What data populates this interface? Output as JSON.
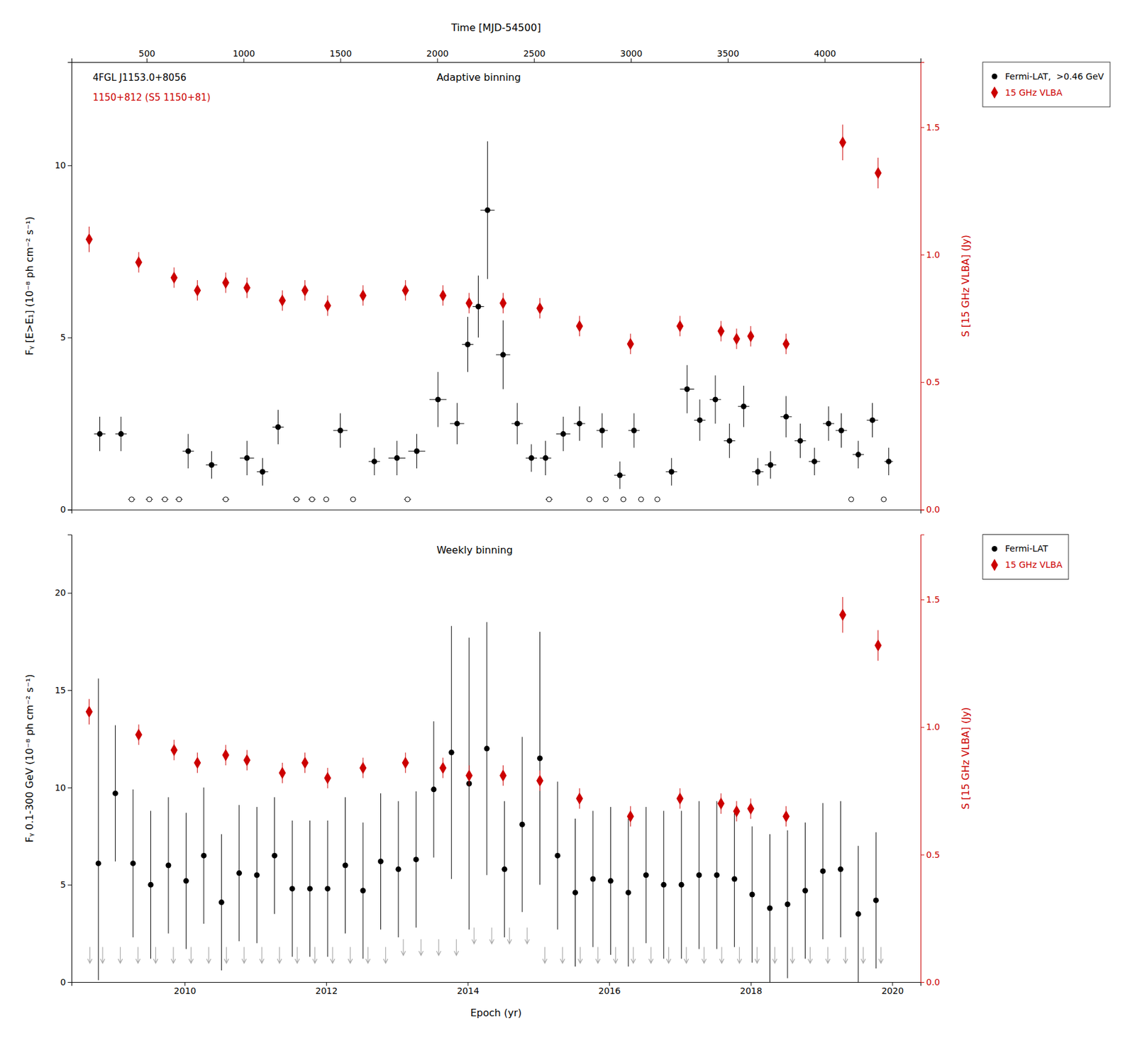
{
  "chart_data": [
    {
      "type": "scatter",
      "title": "Adaptive binning",
      "x2_label": "Time [MJD-54500]",
      "y_label": "Fᵧ [E>E₁] (10⁻⁸ ph cm⁻² s⁻¹)",
      "y2_label": "S [15 GHz VLBA] (Jy)",
      "xlim": [
        2008.4,
        2020.4
      ],
      "x2lim": [
        112.1,
        4495.1
      ],
      "x2ticks": [
        500,
        1000,
        1500,
        2000,
        2500,
        3000,
        3500,
        4000
      ],
      "ylim": [
        0,
        13.0
      ],
      "yticks": [
        0,
        5,
        10
      ],
      "y2lim": [
        0,
        1.755
      ],
      "y2ticks": [
        {
          "value": 0,
          "label": "0.0"
        },
        0.5,
        {
          "value": 1.0,
          "label": "1.0"
        },
        1.5
      ],
      "grid": false,
      "legend": "upper right",
      "annotations": [
        {
          "text": "4FGL J1153.0+8056",
          "color": "#000000"
        },
        {
          "text": "1150+812 (S5 1150+81)",
          "color": "#cc0000"
        }
      ],
      "series": [
        {
          "name": "Fermi-LAT,  >0.46 GeV",
          "type": "scatter",
          "marker": "circle",
          "color": "#000000",
          "x": [
            2008.8,
            2009.1,
            2010.05,
            2010.38,
            2010.88,
            2011.1,
            2011.32,
            2012.2,
            2012.68,
            2013.0,
            2013.28,
            2013.58,
            2013.85,
            2014.0,
            2014.15,
            2014.28,
            2014.5,
            2014.7,
            2014.9,
            2015.1,
            2015.35,
            2015.58,
            2015.9,
            2016.15,
            2016.35,
            2016.88,
            2017.1,
            2017.28,
            2017.5,
            2017.7,
            2017.9,
            2018.1,
            2018.28,
            2018.5,
            2018.7,
            2018.9,
            2019.1,
            2019.28,
            2019.52,
            2019.72,
            2019.95
          ],
          "values": [
            2.2,
            2.2,
            1.7,
            1.3,
            1.5,
            1.1,
            2.4,
            2.3,
            1.4,
            1.5,
            1.7,
            3.2,
            2.5,
            4.8,
            5.9,
            8.7,
            4.5,
            2.5,
            1.5,
            1.5,
            2.2,
            2.5,
            2.3,
            1.0,
            2.3,
            1.1,
            3.5,
            2.6,
            3.2,
            2.0,
            3.0,
            1.1,
            1.3,
            2.7,
            2.0,
            1.4,
            2.5,
            2.3,
            1.6,
            2.6,
            1.4
          ],
          "y_err": [
            0.5,
            0.5,
            0.5,
            0.4,
            0.5,
            0.4,
            0.5,
            0.5,
            0.4,
            0.5,
            0.5,
            0.8,
            0.6,
            0.8,
            0.9,
            2.0,
            1.0,
            0.6,
            0.4,
            0.5,
            0.5,
            0.5,
            0.5,
            0.4,
            0.5,
            0.4,
            0.7,
            0.6,
            0.7,
            0.5,
            0.6,
            0.4,
            0.4,
            0.6,
            0.5,
            0.4,
            0.5,
            0.5,
            0.4,
            0.5,
            0.4
          ],
          "x_err": [
            0.08,
            0.08,
            0.08,
            0.08,
            0.1,
            0.08,
            0.08,
            0.1,
            0.08,
            0.12,
            0.12,
            0.12,
            0.1,
            0.08,
            0.08,
            0.1,
            0.1,
            0.08,
            0.08,
            0.08,
            0.1,
            0.08,
            0.08,
            0.08,
            0.08,
            0.08,
            0.1,
            0.08,
            0.08,
            0.08,
            0.08,
            0.08,
            0.08,
            0.08,
            0.08,
            0.08,
            0.08,
            0.08,
            0.08,
            0.08,
            0.06
          ]
        },
        {
          "type": "scatter",
          "marker": "circle-open",
          "color": "#000000",
          "x": [
            2009.25,
            2009.5,
            2009.72,
            2009.92,
            2010.58,
            2011.58,
            2011.8,
            2012.0,
            2012.38,
            2013.15,
            2015.15,
            2015.72,
            2015.95,
            2016.2,
            2016.45,
            2016.68,
            2019.42,
            2019.88
          ],
          "values": [
            0.3,
            0.3,
            0.3,
            0.3,
            0.3,
            0.3,
            0.3,
            0.3,
            0.3,
            0.3,
            0.3,
            0.3,
            0.3,
            0.3,
            0.3,
            0.3,
            0.3,
            0.3
          ],
          "x_err": [
            0.05,
            0.05,
            0.05,
            0.05,
            0.05,
            0.05,
            0.05,
            0.04,
            0.04,
            0.05,
            0.05,
            0.04,
            0.04,
            0.04,
            0.04,
            0.04,
            0.04,
            0.04
          ]
        },
        {
          "name": "15 GHz VLBA",
          "type": "scatter",
          "marker": "diamond",
          "color": "#cc0000",
          "axis": "y2",
          "x": [
            2008.65,
            2009.35,
            2009.85,
            2010.18,
            2010.58,
            2010.88,
            2011.38,
            2011.7,
            2012.02,
            2012.52,
            2013.12,
            2013.65,
            2014.02,
            2014.5,
            2015.02,
            2015.58,
            2016.3,
            2017.0,
            2017.58,
            2017.8,
            2018.0,
            2018.5,
            2019.3,
            2019.8
          ],
          "values": [
            1.06,
            0.97,
            0.91,
            0.86,
            0.89,
            0.87,
            0.82,
            0.86,
            0.8,
            0.84,
            0.86,
            0.84,
            0.81,
            0.81,
            0.79,
            0.72,
            0.65,
            0.72,
            0.7,
            0.67,
            0.68,
            0.65,
            1.44,
            1.32
          ],
          "y_err": [
            0.05,
            0.04,
            0.04,
            0.04,
            0.04,
            0.04,
            0.04,
            0.04,
            0.04,
            0.04,
            0.04,
            0.04,
            0.04,
            0.04,
            0.04,
            0.04,
            0.04,
            0.04,
            0.04,
            0.04,
            0.04,
            0.04,
            0.07,
            0.06
          ]
        }
      ]
    },
    {
      "type": "scatter",
      "title": "Weekly binning",
      "x_label": "Epoch (yr)",
      "y_label": "Fᵧ 0.1-300 GeV (10⁻⁸ ph cm⁻² s⁻¹)",
      "y2_label": "S [15 GHz VLBA] (Jy)",
      "xlim": [
        2008.4,
        2020.4
      ],
      "xticks": [
        2010,
        2012,
        2014,
        2016,
        2018,
        2020
      ],
      "ylim": [
        0,
        23.0
      ],
      "yticks": [
        0,
        5,
        10,
        15,
        20
      ],
      "y2lim": [
        0,
        1.755
      ],
      "y2ticks": [
        {
          "value": 0,
          "label": "0.0"
        },
        0.5,
        {
          "value": 1.0,
          "label": "1.0"
        },
        1.5
      ],
      "grid": false,
      "legend": "upper right",
      "series": [
        {
          "name": "Fermi-LAT",
          "type": "scatter",
          "marker": "circle",
          "color": "#000000",
          "x": [
            2008.78,
            2009.02,
            2009.27,
            2009.52,
            2009.77,
            2010.02,
            2010.27,
            2010.52,
            2010.77,
            2011.02,
            2011.27,
            2011.52,
            2011.77,
            2012.02,
            2012.27,
            2012.52,
            2012.77,
            2013.02,
            2013.27,
            2013.52,
            2013.77,
            2014.02,
            2014.27,
            2014.52,
            2014.77,
            2015.02,
            2015.27,
            2015.52,
            2015.77,
            2016.02,
            2016.27,
            2016.52,
            2016.77,
            2017.02,
            2017.27,
            2017.52,
            2017.77,
            2018.02,
            2018.27,
            2018.52,
            2018.77,
            2019.02,
            2019.27,
            2019.52,
            2019.77
          ],
          "values": [
            6.1,
            9.7,
            6.1,
            5.0,
            6.0,
            5.2,
            6.5,
            4.1,
            5.6,
            5.5,
            6.5,
            4.8,
            4.8,
            4.8,
            6.0,
            4.7,
            6.2,
            5.8,
            6.3,
            9.9,
            11.8,
            10.2,
            12.0,
            5.8,
            8.1,
            11.5,
            6.5,
            4.6,
            5.3,
            5.2,
            4.6,
            5.5,
            5.0,
            5.0,
            5.5,
            5.5,
            5.3,
            4.5,
            3.8,
            4.0,
            4.7,
            5.7,
            5.8,
            3.5,
            4.2
          ],
          "y_err_minus": [
            6.0,
            3.5,
            3.8,
            3.8,
            3.5,
            3.5,
            3.5,
            3.5,
            3.5,
            3.5,
            3.0,
            3.5,
            3.5,
            3.5,
            3.5,
            3.5,
            3.5,
            3.5,
            3.5,
            3.5,
            6.5,
            7.5,
            6.5,
            3.5,
            4.5,
            6.5,
            3.8,
            3.8,
            3.5,
            3.8,
            3.8,
            3.5,
            3.8,
            3.8,
            3.8,
            3.8,
            3.5,
            3.5,
            3.8,
            3.8,
            3.5,
            3.5,
            3.5,
            3.5,
            3.5
          ],
          "y_err_plus": [
            9.5,
            3.5,
            3.8,
            3.8,
            3.5,
            3.5,
            3.5,
            3.5,
            3.5,
            3.5,
            3.0,
            3.5,
            3.5,
            3.5,
            3.5,
            3.5,
            3.5,
            3.5,
            3.5,
            3.5,
            6.5,
            7.5,
            6.5,
            3.5,
            4.5,
            6.5,
            3.8,
            3.8,
            3.5,
            3.8,
            3.8,
            3.5,
            3.8,
            3.8,
            3.8,
            3.8,
            3.5,
            3.5,
            3.8,
            3.8,
            3.5,
            3.5,
            3.5,
            3.5,
            3.5
          ]
        },
        {
          "type": "scatter",
          "marker": "arrow-down",
          "color": "#aaaaaa",
          "x": [
            2008.66,
            2008.84,
            2009.09,
            2009.34,
            2009.59,
            2009.84,
            2010.09,
            2010.34,
            2010.59,
            2010.84,
            2011.09,
            2011.34,
            2011.59,
            2011.84,
            2012.09,
            2012.34,
            2012.59,
            2012.84,
            2013.09,
            2013.34,
            2013.59,
            2013.84,
            2014.09,
            2014.34,
            2014.59,
            2014.84,
            2015.09,
            2015.34,
            2015.59,
            2015.84,
            2016.09,
            2016.34,
            2016.59,
            2016.84,
            2017.09,
            2017.34,
            2017.59,
            2017.84,
            2018.09,
            2018.34,
            2018.59,
            2018.84,
            2019.09,
            2019.34,
            2019.59,
            2019.84
          ],
          "values": [
            1.8,
            1.8,
            1.8,
            1.8,
            1.8,
            1.8,
            1.8,
            1.8,
            1.8,
            1.8,
            1.8,
            1.8,
            1.8,
            1.8,
            1.8,
            1.8,
            1.8,
            1.8,
            2.2,
            2.2,
            2.2,
            2.2,
            2.8,
            2.8,
            2.8,
            2.8,
            1.8,
            1.8,
            1.8,
            1.8,
            1.8,
            1.8,
            1.8,
            1.8,
            1.8,
            1.8,
            1.8,
            1.8,
            1.8,
            1.8,
            1.8,
            1.8,
            1.8,
            1.8,
            1.8,
            1.8
          ]
        },
        {
          "name": "15 GHz VLBA",
          "type": "scatter",
          "marker": "diamond",
          "color": "#cc0000",
          "axis": "y2",
          "x": [
            2008.65,
            2009.35,
            2009.85,
            2010.18,
            2010.58,
            2010.88,
            2011.38,
            2011.7,
            2012.02,
            2012.52,
            2013.12,
            2013.65,
            2014.02,
            2014.5,
            2015.02,
            2015.58,
            2016.3,
            2017.0,
            2017.58,
            2017.8,
            2018.0,
            2018.5,
            2019.3,
            2019.8
          ],
          "values": [
            1.06,
            0.97,
            0.91,
            0.86,
            0.89,
            0.87,
            0.82,
            0.86,
            0.8,
            0.84,
            0.86,
            0.84,
            0.81,
            0.81,
            0.79,
            0.72,
            0.65,
            0.72,
            0.7,
            0.67,
            0.68,
            0.65,
            1.44,
            1.32
          ],
          "y_err": [
            0.05,
            0.04,
            0.04,
            0.04,
            0.04,
            0.04,
            0.04,
            0.04,
            0.04,
            0.04,
            0.04,
            0.04,
            0.04,
            0.04,
            0.04,
            0.04,
            0.04,
            0.04,
            0.04,
            0.04,
            0.04,
            0.04,
            0.07,
            0.06
          ]
        }
      ]
    }
  ]
}
